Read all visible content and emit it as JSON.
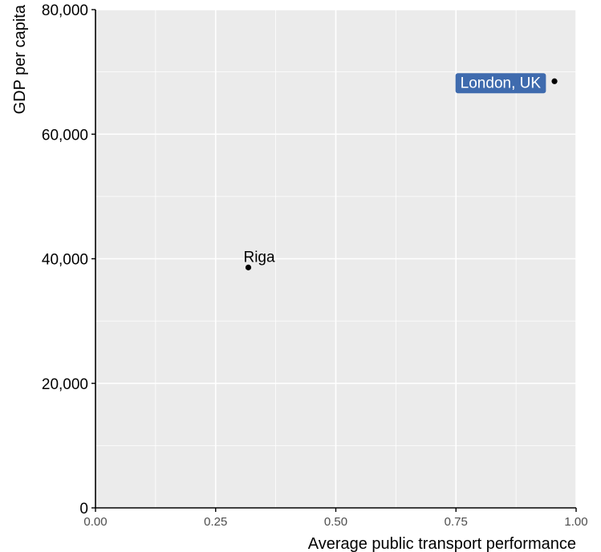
{
  "chart_data": {
    "type": "scatter",
    "title": "",
    "xlabel": "Average public transport performance",
    "ylabel": "GDP per capita",
    "xlim": [
      0,
      1
    ],
    "ylim": [
      0,
      80000
    ],
    "x_ticks": [
      0,
      0.25,
      0.5,
      0.75,
      1.0
    ],
    "x_tick_labels": [
      "0.00",
      "0.25",
      "0.50",
      "0.75",
      "1.00"
    ],
    "y_ticks": [
      0,
      20000,
      40000,
      60000,
      80000
    ],
    "y_tick_labels": [
      "0",
      "20,000",
      "40,000",
      "60,000",
      "80,000"
    ],
    "grid": true,
    "panel_background": "#EBEBEB",
    "grid_color": "#FFFFFF",
    "point_color": "#000000",
    "points": [
      {
        "label": "London, UK",
        "x": 0.955,
        "y": 68500,
        "highlight": true
      },
      {
        "label": "Riga",
        "x": 0.318,
        "y": 38600,
        "highlight": false
      }
    ],
    "highlight_fill": "#3F6BAE",
    "highlight_text_color": "#FFFFFF"
  }
}
